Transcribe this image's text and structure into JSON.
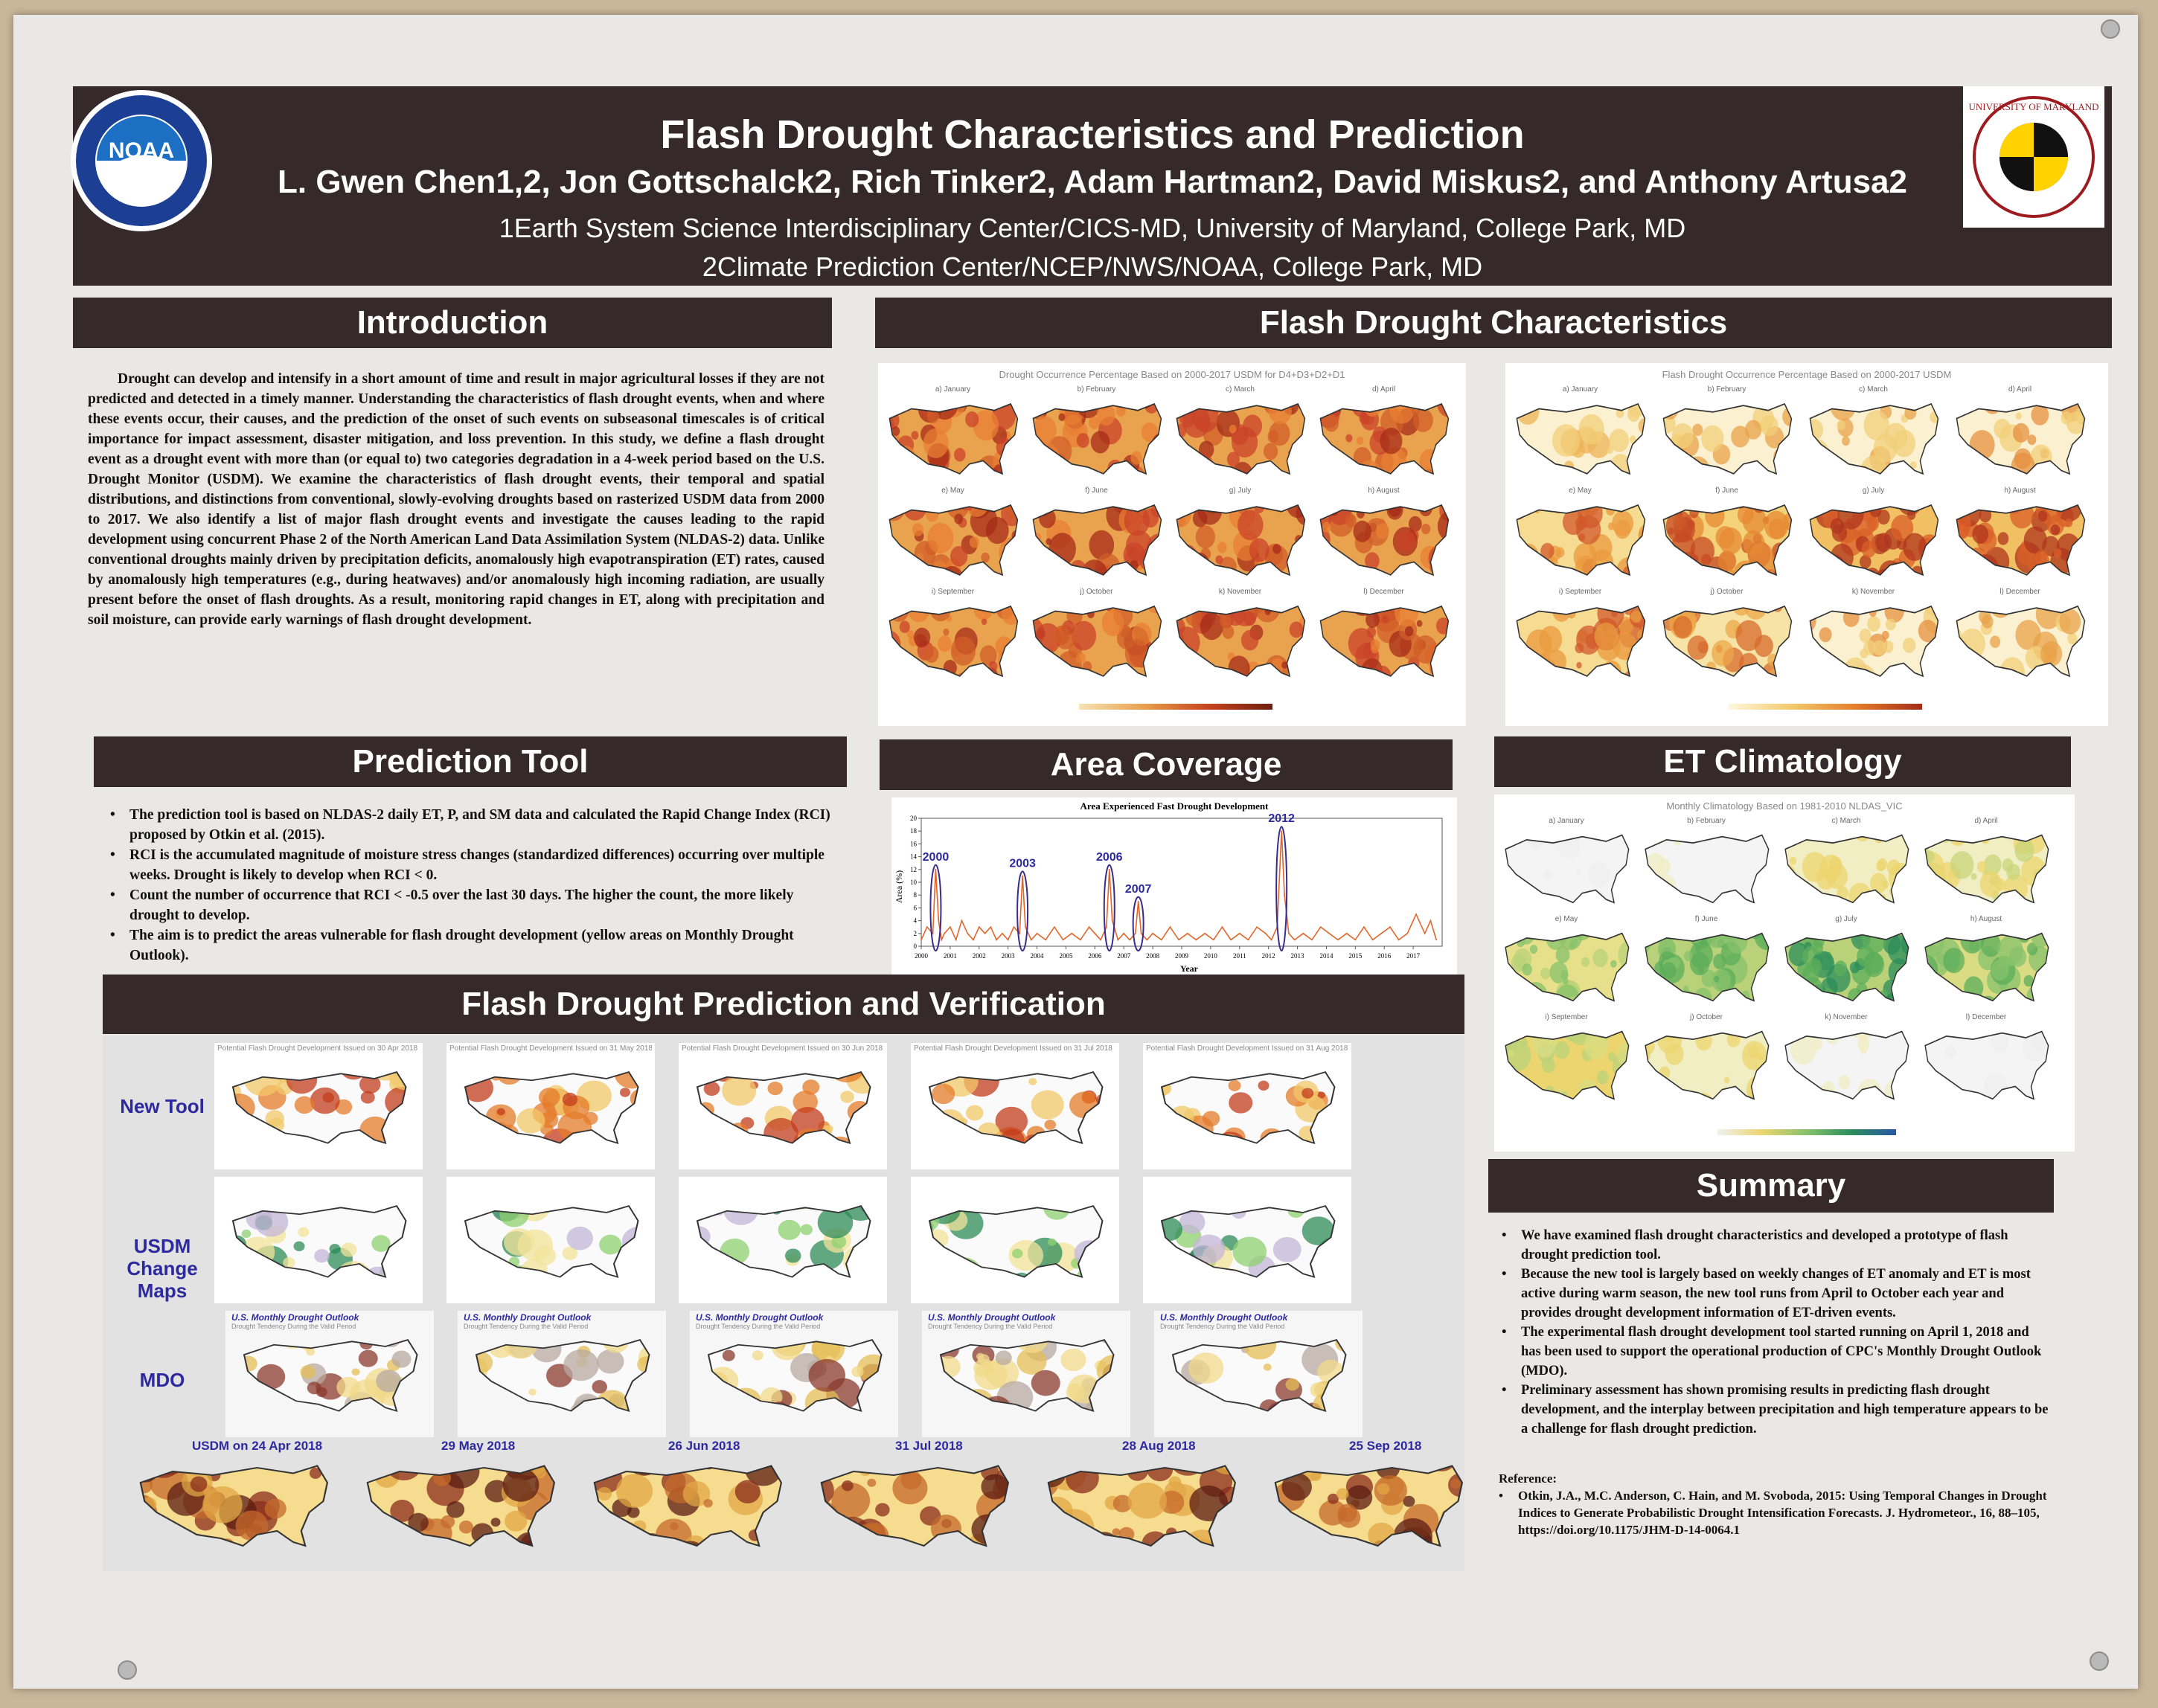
{
  "header": {
    "title": "Flash Drought Characteristics and Prediction",
    "authors": "L. Gwen Chen1,2, Jon Gottschalck2, Rich Tinker2, Adam Hartman2, David Miskus2, and Anthony Artusa2",
    "affiliation1": "1Earth System  Science Interdisciplinary Center/CICS-MD, University of Maryland, College Park, MD",
    "affiliation2": "2Climate Prediction Center/NCEP/NWS/NOAA, College Park, MD",
    "noaa_logo_text": "NOAA",
    "umd_logo_text": "UNIVERSITY OF MARYLAND"
  },
  "introduction": {
    "heading": "Introduction",
    "text": "Drought can develop and intensify in a short amount of time and result in major agricultural losses if they are not predicted and detected in a timely manner.  Understanding the characteristics of flash drought events, when and where these events occur, their causes, and the prediction of the onset of such events on subseasonal timescales is of critical importance for impact assessment, disaster mitigation, and loss prevention.  In this study, we define a flash drought event as a drought event with more than (or equal to) two categories degradation in a 4-week period based on the U.S. Drought Monitor (USDM).  We examine the characteristics of flash drought events, their temporal and spatial distributions, and distinctions from conventional, slowly-evolving droughts based on rasterized USDM data from 2000 to 2017.  We also identify a list of major flash drought events and investigate the causes leading to the rapid development using concurrent Phase 2 of the North American Land Data Assimilation System (NLDAS-2) data.  Unlike conventional droughts mainly driven by precipitation deficits, anomalously high evapotranspiration (ET) rates, caused by anomalously high temperatures (e.g., during heatwaves) and/or anomalously high incoming radiation, are usually present before the onset of flash droughts.  As a result, monitoring rapid changes in ET, along with precipitation and soil moisture, can provide early warnings of flash drought development."
  },
  "characteristics": {
    "heading": "Flash Drought Characteristics",
    "left_title": "Drought Occurrence Percentage Based on 2000-2017 USDM for D4+D3+D2+D1",
    "right_title": "Flash Drought Occurrence Percentage Based on 2000-2017 USDM",
    "months": [
      "a) January",
      "b) February",
      "c) March",
      "d) April",
      "e) May",
      "f) June",
      "g) July",
      "h) August",
      "i) September",
      "j) October",
      "k) November",
      "l) December"
    ]
  },
  "prediction_tool": {
    "heading": "Prediction Tool",
    "bullets": [
      "The prediction tool is based on NLDAS-2 daily ET, P, and SM data and calculated the Rapid Change Index (RCI) proposed by Otkin et al. (2015).",
      "RCI is the accumulated magnitude of moisture stress changes (standardized differences) occurring over multiple weeks. Drought is likely to develop when RCI < 0.",
      "Count the number of occurrence that RCI < -0.5 over the last 30 days. The higher the count, the more likely drought to develop.",
      "The aim is to predict the areas vulnerable for flash drought development (yellow areas on Monthly Drought Outlook)."
    ]
  },
  "area_coverage": {
    "heading": "Area Coverage"
  },
  "chart_data": {
    "type": "line",
    "title": "Area Experienced Fast Drought Development",
    "xlabel": "Year",
    "ylabel": "Area (%)",
    "ylim": [
      0,
      20
    ],
    "yticks": [
      0,
      2,
      4,
      6,
      8,
      10,
      12,
      14,
      16,
      18,
      20
    ],
    "xticks": [
      "2000",
      "2001",
      "2002",
      "2003",
      "2004",
      "2005",
      "2006",
      "2007",
      "2008",
      "2009",
      "2010",
      "2011",
      "2012",
      "2013",
      "2014",
      "2015",
      "2016",
      "2017"
    ],
    "annotations": [
      "2000",
      "2003",
      "2006",
      "2007",
      "2012"
    ],
    "series": [
      {
        "x": [
          2000.0,
          2000.2,
          2000.4,
          2000.5,
          2000.6,
          2000.7,
          2000.8,
          2001.0,
          2001.2,
          2001.4,
          2001.6,
          2001.8,
          2002.0,
          2002.2,
          2002.4,
          2002.6,
          2002.8,
          2003.0,
          2003.2,
          2003.4,
          2003.5,
          2003.6,
          2003.8,
          2004.0,
          2004.3,
          2004.6,
          2004.9,
          2005.2,
          2005.5,
          2005.8,
          2006.0,
          2006.2,
          2006.4,
          2006.5,
          2006.6,
          2006.8,
          2007.0,
          2007.2,
          2007.4,
          2007.5,
          2007.6,
          2007.8,
          2008.0,
          2008.3,
          2008.6,
          2008.9,
          2009.2,
          2009.5,
          2009.8,
          2010.1,
          2010.4,
          2010.7,
          2011.0,
          2011.3,
          2011.6,
          2011.9,
          2012.1,
          2012.3,
          2012.45,
          2012.55,
          2012.7,
          2012.9,
          2013.2,
          2013.5,
          2013.8,
          2014.1,
          2014.4,
          2014.7,
          2015.0,
          2015.3,
          2015.6,
          2015.9,
          2016.2,
          2016.5,
          2016.8,
          2017.1,
          2017.4,
          2017.6,
          2017.8
        ],
        "values": [
          1,
          3,
          2,
          12,
          4,
          1,
          2,
          3,
          1,
          4,
          2,
          1,
          3,
          2,
          3,
          1,
          2,
          1,
          3,
          2,
          11,
          3,
          1,
          2,
          1,
          3,
          1,
          2,
          1,
          3,
          2,
          1,
          3,
          12,
          4,
          1,
          2,
          1,
          2,
          7,
          2,
          1,
          2,
          1,
          3,
          1,
          2,
          1,
          2,
          1,
          3,
          1,
          2,
          1,
          3,
          2,
          1,
          3,
          18,
          8,
          2,
          1,
          2,
          1,
          3,
          2,
          1,
          2,
          1,
          3,
          1,
          2,
          3,
          1,
          2,
          5,
          2,
          4,
          1
        ]
      }
    ]
  },
  "et_climatology": {
    "heading": "ET Climatology",
    "title": "Monthly Climatology Based on 1981-2010 NLDAS_VIC"
  },
  "verification": {
    "heading": "Flash Drought Prediction and Verification",
    "row_new_tool": "New Tool",
    "row_usdm": "USDM Change Maps",
    "row_mdo": "MDO",
    "new_tool_titles": [
      "Potential Flash Drought Development Issued on 30 Apr 2018",
      "Potential Flash Drought Development Issued on 31 May 2018",
      "Potential Flash Drought Development Issued on 30 Jun 2018",
      "Potential Flash Drought Development Issued on 31 Jul 2018",
      "Potential Flash Drought Development Issued on 31 Aug 2018"
    ],
    "mdo_title": "U.S. Monthly Drought Outlook",
    "mdo_subtitle": "Drought Tendency During the Valid Period",
    "usdm_dates": [
      "USDM on 24 Apr 2018",
      "29 May 2018",
      "26 Jun 2018",
      "31 Jul 2018",
      "28 Aug 2018",
      "25 Sep 2018"
    ]
  },
  "summary": {
    "heading": "Summary",
    "bullets": [
      "We have examined flash drought characteristics and developed a prototype of flash drought prediction tool.",
      "Because the new tool is largely based on weekly changes of ET anomaly and ET is most active during warm season, the new tool runs from April to October each year and provides drought development information of ET-driven events.",
      "The experimental flash drought development tool started running on April 1, 2018 and has been used to support the operational production of CPC's Monthly Drought Outlook (MDO).",
      "Preliminary assessment has shown promising results in predicting flash drought development, and the interplay between precipitation and high temperature appears to be a challenge for flash drought prediction."
    ],
    "reference_heading": "Reference:",
    "reference": "Otkin, J.A., M.C. Anderson, C. Hain, and M. Svoboda, 2015: Using Temporal Changes in Drought Indices to Generate Probabilistic Drought Intensification Forecasts. J. Hydrometeor., 16, 88–105, https://doi.org/10.1175/JHM-D-14-0064.1"
  },
  "colors": {
    "header_bg": "#35292b",
    "accent_blue": "#2d2aa0",
    "drought_dark": "#b0361e",
    "drought_orange": "#e58a33",
    "drought_yellow": "#f3d27a",
    "et_green": "#5cae5b"
  }
}
